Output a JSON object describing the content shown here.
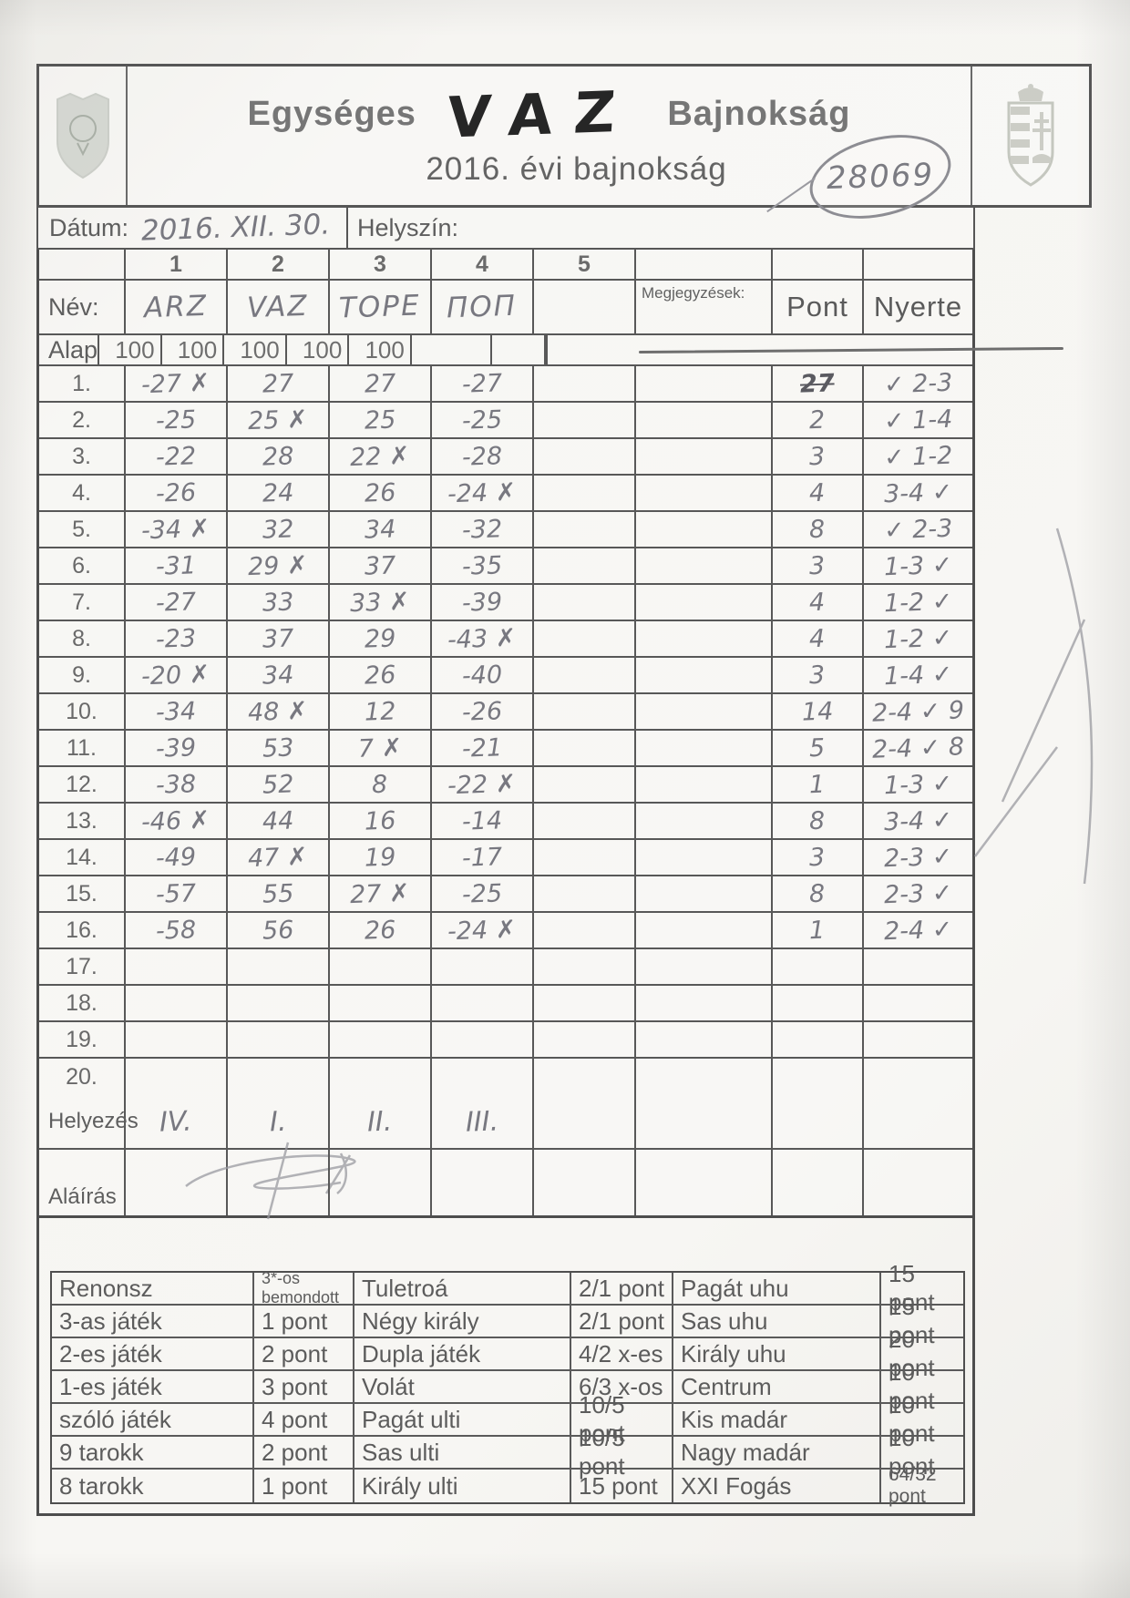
{
  "header": {
    "title_left": "Egységes",
    "title_hand": "VAZ",
    "title_right": "Bajnokság",
    "subtitle": "2016. évi bajnokság",
    "serial": "28069"
  },
  "meta": {
    "date_label": "Dátum:",
    "date_value": "2016. XII. 30.",
    "location_label": "Helyszín:",
    "location_value": ""
  },
  "scoretable": {
    "col_numbers": [
      "1",
      "2",
      "3",
      "4",
      "5"
    ],
    "name_label": "Név:",
    "names": [
      "ARZ",
      "VAZ",
      "TOPE",
      "ПОП"
    ],
    "alap_label": "Alap",
    "alap_values": [
      "100",
      "100",
      "100",
      "100",
      "100"
    ],
    "megjegyzesek_label": "Megjegyzések:",
    "pont_label": "Pont",
    "nyerte_label": "Nyerte",
    "rows": [
      {
        "label": "1.",
        "scores": [
          "-27 ✗",
          "27",
          "27",
          "-27"
        ],
        "pont": "27",
        "pont_struck": true,
        "nyerte": "✓ 2-3"
      },
      {
        "label": "2.",
        "scores": [
          "-25",
          "25 ✗",
          "25",
          "-25"
        ],
        "pont": "2",
        "nyerte": "✓ 1-4"
      },
      {
        "label": "3.",
        "scores": [
          "-22",
          "28",
          "22 ✗",
          "-28"
        ],
        "pont": "3",
        "nyerte": "✓ 1-2"
      },
      {
        "label": "4.",
        "scores": [
          "-26",
          "24",
          "26",
          "-24 ✗"
        ],
        "pont": "4",
        "nyerte": "3-4 ✓"
      },
      {
        "label": "5.",
        "scores": [
          "-34 ✗",
          "32",
          "34",
          "-32"
        ],
        "pont": "8",
        "nyerte": "✓ 2-3"
      },
      {
        "label": "6.",
        "scores": [
          "-31",
          "29 ✗",
          "37",
          "-35"
        ],
        "pont": "3",
        "nyerte": "1-3 ✓"
      },
      {
        "label": "7.",
        "scores": [
          "-27",
          "33",
          "33 ✗",
          "-39"
        ],
        "pont": "4",
        "nyerte": "1-2 ✓"
      },
      {
        "label": "8.",
        "scores": [
          "-23",
          "37",
          "29",
          "-43 ✗"
        ],
        "pont": "4",
        "nyerte": "1-2 ✓"
      },
      {
        "label": "9.",
        "scores": [
          "-20 ✗",
          "34",
          "26",
          "-40"
        ],
        "pont": "3",
        "nyerte": "1-4 ✓"
      },
      {
        "label": "10.",
        "scores": [
          "-34",
          "48 ✗",
          "12",
          "-26"
        ],
        "pont": "14",
        "nyerte": "2-4 ✓ 9"
      },
      {
        "label": "11.",
        "scores": [
          "-39",
          "53",
          "7 ✗",
          "-21"
        ],
        "pont": "5",
        "nyerte": "2-4 ✓ 8"
      },
      {
        "label": "12.",
        "scores": [
          "-38",
          "52",
          "8",
          "-22 ✗"
        ],
        "pont": "1",
        "nyerte": "1-3 ✓"
      },
      {
        "label": "13.",
        "scores": [
          "-46 ✗",
          "44",
          "16",
          "-14"
        ],
        "pont": "8",
        "nyerte": "3-4 ✓"
      },
      {
        "label": "14.",
        "scores": [
          "-49",
          "47 ✗",
          "19",
          "-17"
        ],
        "pont": "3",
        "nyerte": "2-3 ✓"
      },
      {
        "label": "15.",
        "scores": [
          "-57",
          "55",
          "27 ✗",
          "-25"
        ],
        "pont": "8",
        "nyerte": "2-3 ✓"
      },
      {
        "label": "16.",
        "scores": [
          "-58",
          "56",
          "26",
          "-24 ✗"
        ],
        "pont": "1",
        "nyerte": "2-4 ✓"
      },
      {
        "label": "17.",
        "scores": [
          "",
          "",
          "",
          ""
        ],
        "pont": "",
        "nyerte": ""
      },
      {
        "label": "18.",
        "scores": [
          "",
          "",
          "",
          ""
        ],
        "pont": "",
        "nyerte": ""
      },
      {
        "label": "19.",
        "scores": [
          "",
          "",
          "",
          ""
        ],
        "pont": "",
        "nyerte": ""
      },
      {
        "label": "20.",
        "scores": [
          "",
          "",
          "",
          ""
        ],
        "pont": "",
        "nyerte": ""
      }
    ],
    "helyezes_label": "Helyezés",
    "helyezes": [
      "IV.",
      "I.",
      "II.",
      "III."
    ],
    "alairas_label": "Aláírás"
  },
  "legend": {
    "rows": [
      [
        "Renonsz",
        "3*-os bemondott",
        "Tuletroá",
        "2/1 pont",
        "Pagát uhu",
        "15 pont"
      ],
      [
        "3-as játék",
        "1 pont",
        "Négy király",
        "2/1 pont",
        "Sas uhu",
        "15 pont"
      ],
      [
        "2-es játék",
        "2 pont",
        "Dupla játék",
        "4/2 x-es",
        "Király uhu",
        "20 pont"
      ],
      [
        "1-es játék",
        "3 pont",
        "Volát",
        "6/3 x-os",
        "Centrum",
        "10 pont"
      ],
      [
        "szóló játék",
        "4 pont",
        "Pagát ulti",
        "10/5 pont",
        "Kis madár",
        "10 pont"
      ],
      [
        "9 tarokk",
        "2 pont",
        "Sas ulti",
        "10/5 pont",
        "Nagy madár",
        "10 pont"
      ],
      [
        "8 tarokk",
        "1 pont",
        "Király ulti",
        "15 pont",
        "XXI Fogás",
        "64/32 pont"
      ]
    ]
  }
}
